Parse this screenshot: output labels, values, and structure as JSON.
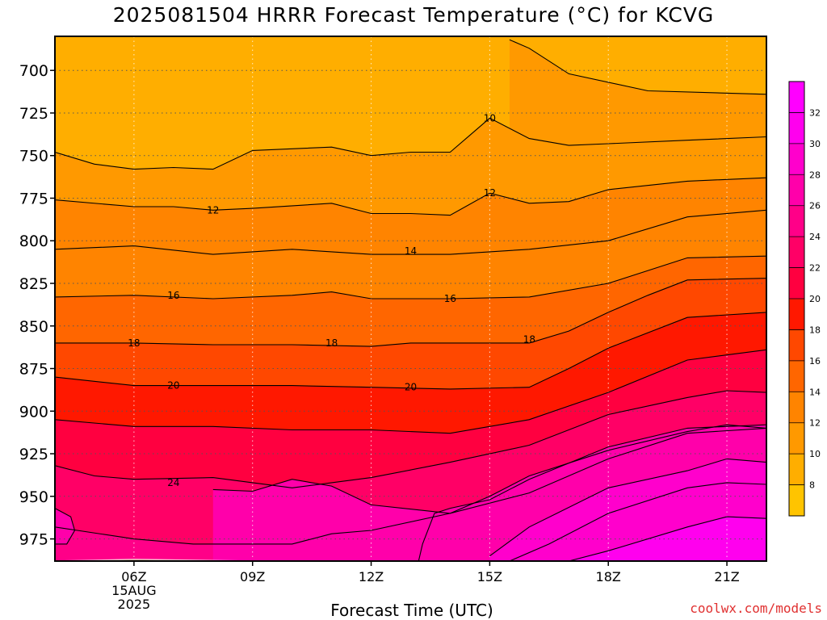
{
  "title": "2025081504 HRRR Forecast Temperature (°C) for KCVG",
  "credit": "coolwx.com/models",
  "chart_data": {
    "type": "heatmap",
    "title": "2025081504 HRRR Forecast Temperature (°C) for KCVG",
    "xlabel": "Forecast Time (UTC)",
    "ylabel": "",
    "x_unit": "hours UTC on 15AUG2025",
    "x_ticks": [
      {
        "value": 6,
        "label": "06Z",
        "sub1": "15AUG",
        "sub2": "2025"
      },
      {
        "value": 9,
        "label": "09Z"
      },
      {
        "value": 12,
        "label": "12Z"
      },
      {
        "value": 15,
        "label": "15Z"
      },
      {
        "value": 18,
        "label": "18Z"
      },
      {
        "value": 21,
        "label": "21Z"
      }
    ],
    "xlim": [
      4,
      22
    ],
    "ylim": [
      680,
      988
    ],
    "y_inverted": true,
    "y_ticks": [
      700,
      725,
      750,
      775,
      800,
      825,
      850,
      875,
      900,
      925,
      950,
      975
    ],
    "grid": true,
    "contour_levels": [
      8,
      10,
      12,
      14,
      16,
      18,
      20,
      22,
      24,
      26,
      28,
      30,
      32
    ],
    "colorbar": {
      "ticks": [
        8,
        10,
        12,
        14,
        16,
        18,
        20,
        22,
        24,
        26,
        28,
        30,
        32
      ],
      "colors": [
        "#ffc400",
        "#ffae00",
        "#ff9900",
        "#ff8400",
        "#ff6600",
        "#ff4800",
        "#ff1800",
        "#ff0040",
        "#ff0066",
        "#ff0088",
        "#ff00aa",
        "#ff00cc",
        "#ff00ee",
        "#ff00ff"
      ]
    },
    "contour_labels": [
      {
        "level": 10,
        "x": 15.0,
        "p": 728
      },
      {
        "level": 12,
        "x": 8.0,
        "p": 782
      },
      {
        "level": 12,
        "x": 15.0,
        "p": 772
      },
      {
        "level": 14,
        "x": 13.0,
        "p": 806
      },
      {
        "level": 16,
        "x": 7.0,
        "p": 832
      },
      {
        "level": 16,
        "x": 14.0,
        "p": 834
      },
      {
        "level": 18,
        "x": 6.0,
        "p": 860
      },
      {
        "level": 18,
        "x": 11.0,
        "p": 860
      },
      {
        "level": 18,
        "x": 16.0,
        "p": 858
      },
      {
        "level": 20,
        "x": 7.0,
        "p": 885
      },
      {
        "level": 20,
        "x": 13.0,
        "p": 886
      },
      {
        "level": 24,
        "x": 7.0,
        "p": 942
      }
    ],
    "isotherms": [
      {
        "level": 10,
        "x": [
          15.5,
          16.0,
          17.0,
          19.0,
          22.0
        ],
        "p": [
          682,
          687,
          702,
          712,
          714
        ]
      },
      {
        "level": 10.5,
        "x": [
          4.0,
          5.0,
          6.0,
          7.0,
          8.0,
          9.0,
          11.0,
          12.0,
          13.0,
          14.0,
          14.5,
          15.0,
          16.0,
          17.0,
          18.0,
          20.0,
          22.0
        ],
        "p": [
          748,
          755,
          758,
          757,
          758,
          747,
          745,
          750,
          748,
          748,
          738,
          728,
          740,
          744,
          743,
          741,
          739
        ]
      },
      {
        "level": 12,
        "x": [
          4.0,
          6.0,
          7.0,
          8.0,
          9.0,
          11.0,
          12.0,
          13.0,
          14.0,
          15.0,
          16.0,
          17.0,
          18.0,
          20.0,
          22.0
        ],
        "p": [
          776,
          780,
          780,
          782,
          781,
          778,
          784,
          784,
          785,
          772,
          778,
          777,
          770,
          765,
          763
        ]
      },
      {
        "level": 12.5,
        "x": [
          4.0,
          6.0,
          8.0,
          10.0,
          12.0,
          14.0,
          16.0,
          18.0,
          20.0,
          22.0
        ],
        "p": [
          805,
          803,
          808,
          805,
          808,
          808,
          805,
          800,
          786,
          782
        ]
      },
      {
        "level": 14.5,
        "x": [
          4.0,
          6.0,
          8.0,
          10.0,
          11.0,
          12.0,
          14.0,
          16.0,
          18.0,
          20.0,
          22.0
        ],
        "p": [
          833,
          832,
          834,
          832,
          830,
          834,
          834,
          833,
          825,
          810,
          809
        ]
      },
      {
        "level": 16.5,
        "x": [
          4.0,
          6.0,
          8.0,
          10.0,
          12.0,
          13.0,
          14.0,
          16.0,
          17.0,
          18.0,
          19.0,
          20.0,
          22.0
        ],
        "p": [
          860,
          860,
          861,
          861,
          862,
          860,
          860,
          860,
          853,
          842,
          832,
          823,
          822
        ]
      },
      {
        "level": 18.5,
        "x": [
          4.0,
          6.0,
          8.0,
          10.0,
          12.0,
          14.0,
          16.0,
          17.0,
          18.0,
          20.0,
          22.0
        ],
        "p": [
          880,
          885,
          885,
          885,
          886,
          887,
          886,
          875,
          863,
          845,
          842
        ]
      },
      {
        "level": 20.5,
        "x": [
          4.0,
          6.0,
          8.0,
          10.0,
          12.0,
          14.0,
          16.0,
          18.0,
          20.0,
          22.0
        ],
        "p": [
          905,
          909,
          909,
          911,
          911,
          913,
          905,
          889,
          870,
          864
        ]
      },
      {
        "level": 22.5,
        "x": [
          4.0,
          5.0,
          6.0,
          8.0,
          10.0,
          12.0,
          14.0,
          16.0,
          18.0,
          20.0,
          21.0,
          22.0
        ],
        "p": [
          932,
          938,
          940,
          939,
          945,
          939,
          930,
          920,
          902,
          892,
          888,
          889
        ]
      },
      {
        "level": 24.5,
        "x": [
          4.0,
          6.0,
          7.5,
          9.0,
          10.0,
          11.0,
          12.0,
          14.0,
          16.0,
          18.0,
          20.0,
          22.0
        ],
        "p": [
          968,
          975,
          978,
          978,
          978,
          972,
          970,
          960,
          948,
          928,
          913,
          910
        ]
      },
      {
        "level": 26,
        "x": [
          8.0,
          9.0,
          10.0,
          11.0,
          12.0,
          14.0,
          15.0,
          16.0,
          18.0,
          20.0,
          21.0,
          22.0
        ],
        "p": [
          946,
          947,
          940,
          944,
          955,
          960,
          950,
          938,
          923,
          912,
          908,
          910
        ]
      },
      {
        "level": 27,
        "x": [
          13.2,
          13.3,
          13.6,
          14.0,
          15.0,
          16.0,
          18.0,
          20.0,
          22.0
        ],
        "p": [
          988,
          978,
          960,
          957,
          952,
          940,
          921,
          910,
          908
        ]
      },
      {
        "level": 28,
        "x": [
          15.0,
          16.0,
          18.0,
          20.0,
          21.0,
          22.0
        ],
        "p": [
          985,
          968,
          945,
          935,
          928,
          930
        ]
      },
      {
        "level": 29,
        "x": [
          15.5,
          16.5,
          18.0,
          20.0,
          21.0,
          22.0
        ],
        "p": [
          988,
          978,
          960,
          945,
          942,
          943
        ]
      },
      {
        "level": 30,
        "x": [
          17.0,
          18.0,
          20.0,
          21.0,
          22.0
        ],
        "p": [
          988,
          982,
          968,
          962,
          963
        ]
      }
    ],
    "ground": [
      {
        "x": 4.0,
        "p": 988
      },
      {
        "x": 6.0,
        "p": 987
      },
      {
        "x": 9.0,
        "p": 988
      },
      {
        "x": 12.0,
        "p": 990
      },
      {
        "x": 15.0,
        "p": 992
      },
      {
        "x": 18.0,
        "p": 990
      },
      {
        "x": 21.0,
        "p": 989
      },
      {
        "x": 22.0,
        "p": 989
      }
    ],
    "surface_bubble": {
      "x": [
        4.0,
        4.4,
        4.5,
        4.3,
        4.0
      ],
      "p": [
        957,
        962,
        970,
        978,
        978
      ]
    }
  }
}
